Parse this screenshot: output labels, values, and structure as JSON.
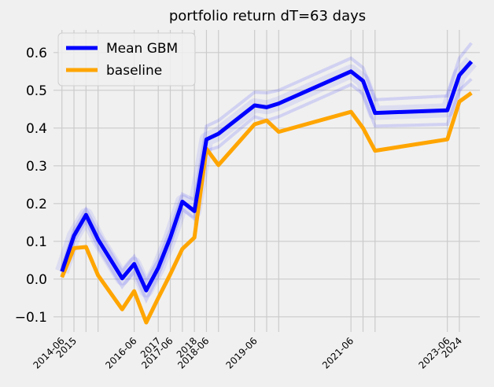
{
  "chart_data": {
    "type": "line",
    "title": "portfolio return dT=63 days",
    "xlabel": "",
    "ylabel": "",
    "ylim": [
      -0.14,
      0.66
    ],
    "y_ticks": [
      -0.1,
      0.0,
      0.1,
      0.2,
      0.3,
      0.4,
      0.5,
      0.6
    ],
    "y_tick_labels": [
      "−0.1",
      "0.0",
      "0.1",
      "0.2",
      "0.3",
      "0.4",
      "0.5",
      "0.6"
    ],
    "grid": true,
    "legend_position": "top-left",
    "x_index": [
      0,
      1,
      2,
      3,
      4,
      5,
      6,
      7,
      8,
      9,
      10,
      11,
      12,
      13,
      14,
      15,
      16,
      17,
      18,
      19,
      20,
      21,
      22,
      23,
      24,
      25,
      26,
      27,
      28,
      29,
      30,
      31,
      32,
      33,
      34,
      35,
      36,
      37
    ],
    "x_tick_labels": [
      {
        "pos": 0,
        "label": "2014-06"
      },
      {
        "pos": 1,
        "label": "2015"
      },
      {
        "pos": 6,
        "label": "2016-06"
      },
      {
        "pos": 8,
        "label": "2017"
      },
      {
        "pos": 9,
        "label": "2017-06"
      },
      {
        "pos": 11,
        "label": "2018"
      },
      {
        "pos": 12,
        "label": "2018-06"
      },
      {
        "pos": 16,
        "label": "2019-06"
      },
      {
        "pos": 24,
        "label": "2021-06"
      },
      {
        "pos": 32,
        "label": "2023-06"
      },
      {
        "pos": 33,
        "label": "2024"
      }
    ],
    "x_gridlines": [
      0,
      1,
      2,
      3,
      6,
      8,
      9,
      10,
      11,
      12,
      13,
      16,
      17,
      18,
      24,
      25,
      26,
      32,
      33
    ],
    "series": [
      {
        "name": "Mean GBM",
        "color": "#0000ff",
        "points": [
          [
            0,
            0.02
          ],
          [
            1,
            0.115
          ],
          [
            2,
            0.17
          ],
          [
            3,
            0.105
          ],
          [
            5,
            0.002
          ],
          [
            6,
            0.04
          ],
          [
            7,
            -0.03
          ],
          [
            8,
            0.03
          ],
          [
            9,
            0.11
          ],
          [
            10,
            0.205
          ],
          [
            11,
            0.18
          ],
          [
            12,
            0.37
          ],
          [
            13,
            0.385
          ],
          [
            16,
            0.46
          ],
          [
            17,
            0.455
          ],
          [
            18,
            0.465
          ],
          [
            24,
            0.55
          ],
          [
            25,
            0.525
          ],
          [
            26,
            0.44
          ],
          [
            32,
            0.447
          ],
          [
            33,
            0.54
          ],
          [
            34,
            0.576
          ]
        ],
        "band_upper": [
          [
            0,
            0.03
          ],
          [
            1,
            0.13
          ],
          [
            2,
            0.185
          ],
          [
            3,
            0.125
          ],
          [
            5,
            0.02
          ],
          [
            6,
            0.06
          ],
          [
            7,
            -0.005
          ],
          [
            8,
            0.05
          ],
          [
            9,
            0.13
          ],
          [
            10,
            0.225
          ],
          [
            11,
            0.21
          ],
          [
            12,
            0.405
          ],
          [
            13,
            0.42
          ],
          [
            16,
            0.495
          ],
          [
            17,
            0.493
          ],
          [
            18,
            0.5
          ],
          [
            24,
            0.585
          ],
          [
            25,
            0.56
          ],
          [
            26,
            0.475
          ],
          [
            32,
            0.485
          ],
          [
            33,
            0.585
          ],
          [
            34,
            0.625
          ]
        ],
        "band_lower": [
          [
            0,
            0.01
          ],
          [
            1,
            0.1
          ],
          [
            2,
            0.155
          ],
          [
            3,
            0.085
          ],
          [
            5,
            -0.02
          ],
          [
            6,
            0.02
          ],
          [
            7,
            -0.055
          ],
          [
            8,
            0.01
          ],
          [
            9,
            0.09
          ],
          [
            10,
            0.185
          ],
          [
            11,
            0.16
          ],
          [
            12,
            0.34
          ],
          [
            13,
            0.35
          ],
          [
            16,
            0.43
          ],
          [
            17,
            0.42
          ],
          [
            18,
            0.43
          ],
          [
            24,
            0.515
          ],
          [
            25,
            0.49
          ],
          [
            26,
            0.405
          ],
          [
            32,
            0.41
          ],
          [
            33,
            0.5
          ],
          [
            34,
            0.53
          ]
        ]
      },
      {
        "name": "baseline",
        "color": "#ffa500",
        "points": [
          [
            0,
            0.005
          ],
          [
            1,
            0.082
          ],
          [
            2,
            0.085
          ],
          [
            3,
            0.01
          ],
          [
            5,
            -0.08
          ],
          [
            6,
            -0.032
          ],
          [
            7,
            -0.115
          ],
          [
            8,
            -0.05
          ],
          [
            9,
            0.013
          ],
          [
            10,
            0.08
          ],
          [
            11,
            0.11
          ],
          [
            12,
            0.345
          ],
          [
            13,
            0.302
          ],
          [
            16,
            0.41
          ],
          [
            17,
            0.42
          ],
          [
            18,
            0.39
          ],
          [
            24,
            0.443
          ],
          [
            25,
            0.4
          ],
          [
            26,
            0.34
          ],
          [
            32,
            0.37
          ],
          [
            33,
            0.47
          ],
          [
            34,
            0.493
          ]
        ]
      }
    ]
  }
}
